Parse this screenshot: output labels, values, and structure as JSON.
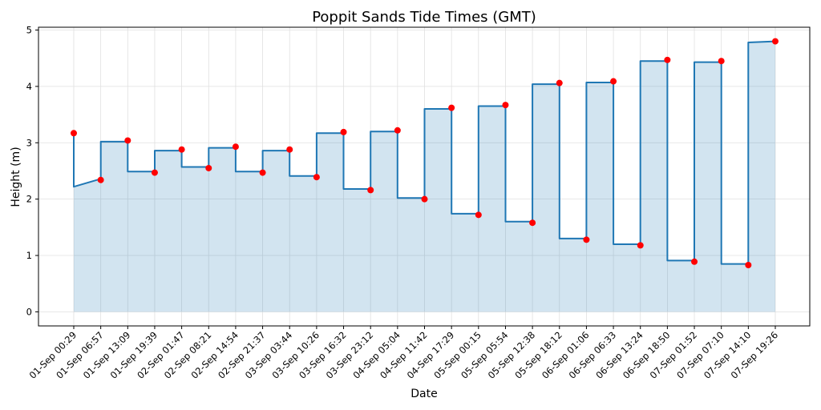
{
  "chart_data": {
    "type": "area",
    "title": "Poppit Sands Tide Times (GMT)",
    "xlabel": "Date",
    "ylabel": "Height (m)",
    "ylim": [
      -0.25,
      5.05
    ],
    "yticks": [
      0,
      1,
      2,
      3,
      4,
      5
    ],
    "grid": true,
    "categories": [
      "01-Sep 00:29",
      "01-Sep 06:57",
      "01-Sep 13:09",
      "01-Sep 19:39",
      "02-Sep 01:47",
      "02-Sep 08:21",
      "02-Sep 14:54",
      "02-Sep 21:37",
      "03-Sep 03:44",
      "03-Sep 10:26",
      "03-Sep 16:32",
      "03-Sep 23:12",
      "04-Sep 05:04",
      "04-Sep 11:42",
      "04-Sep 17:29",
      "05-Sep 00:15",
      "05-Sep 05:54",
      "05-Sep 12:38",
      "05-Sep 18:12",
      "06-Sep 01:06",
      "06-Sep 06:33",
      "06-Sep 13:24",
      "06-Sep 18:50",
      "07-Sep 01:52",
      "07-Sep 07:10",
      "07-Sep 14:10",
      "07-Sep 19:26"
    ],
    "values": [
      3.17,
      2.34,
      3.04,
      2.47,
      2.88,
      2.55,
      2.93,
      2.47,
      2.88,
      2.39,
      3.19,
      2.16,
      3.22,
      2.0,
      3.62,
      1.72,
      3.67,
      1.58,
      4.06,
      1.28,
      4.09,
      1.18,
      4.47,
      0.89,
      4.45,
      0.83,
      4.8
    ],
    "colors": {
      "line": "#1f77b4",
      "fill": "#1f77b4",
      "markers": "#ff0000"
    }
  }
}
